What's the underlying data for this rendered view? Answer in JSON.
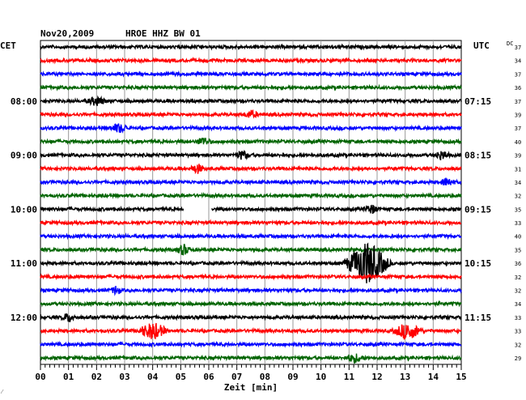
{
  "header": {
    "date": "Nov20,2009",
    "station": "HROE HHZ BW 01",
    "left_zone": "CET",
    "right_zone": "UTC",
    "dc_label": "DC"
  },
  "chart_data": {
    "type": "line",
    "title": "Nov20,2009  HROE HHZ BW 01",
    "xlabel": "Zeit [min]",
    "ylabel": "",
    "xlim": [
      0,
      15
    ],
    "x_ticks": [
      "00",
      "01",
      "02",
      "03",
      "04",
      "05",
      "06",
      "07",
      "08",
      "09",
      "10",
      "11",
      "12",
      "13",
      "14",
      "15"
    ],
    "grid": true,
    "trace_colors": [
      "#000000",
      "#ff0000",
      "#0000ff",
      "#006400"
    ],
    "traces_count": 24,
    "left_hour_labels": [
      {
        "trace": 4,
        "label": "08:00"
      },
      {
        "trace": 8,
        "label": "09:00"
      },
      {
        "trace": 12,
        "label": "10:00"
      },
      {
        "trace": 16,
        "label": "11:00"
      },
      {
        "trace": 20,
        "label": "12:00"
      }
    ],
    "right_hour_labels": [
      {
        "trace": 4,
        "label": "07:15"
      },
      {
        "trace": 8,
        "label": "08:15"
      },
      {
        "trace": 12,
        "label": "09:15"
      },
      {
        "trace": 16,
        "label": "10:15"
      },
      {
        "trace": 20,
        "label": "11:15"
      }
    ],
    "dc_offsets": [
      "37",
      "34",
      "37",
      "36",
      "37",
      "39",
      "37",
      "40",
      "39",
      "31",
      "34",
      "32",
      "35",
      "33",
      "40",
      "35",
      "36",
      "32",
      "32",
      "34",
      "33",
      "33",
      "32",
      "29"
    ],
    "gap": {
      "trace": 12,
      "start_min": 5.1,
      "end_min": 6.1
    },
    "events": [
      {
        "trace": 4,
        "minute": 2.0,
        "amplitude": 0.3,
        "duration": 0.4
      },
      {
        "trace": 5,
        "minute": 7.5,
        "amplitude": 0.25,
        "duration": 0.3
      },
      {
        "trace": 6,
        "minute": 2.8,
        "amplitude": 0.3,
        "duration": 0.4
      },
      {
        "trace": 7,
        "minute": 5.8,
        "amplitude": 0.3,
        "duration": 0.3
      },
      {
        "trace": 8,
        "minute": 7.2,
        "amplitude": 0.3,
        "duration": 0.3
      },
      {
        "trace": 8,
        "minute": 14.3,
        "amplitude": 0.3,
        "duration": 0.3
      },
      {
        "trace": 9,
        "minute": 5.6,
        "amplitude": 0.3,
        "duration": 0.3
      },
      {
        "trace": 10,
        "minute": 14.5,
        "amplitude": 0.3,
        "duration": 0.3
      },
      {
        "trace": 12,
        "minute": 11.8,
        "amplitude": 0.3,
        "duration": 0.3
      },
      {
        "trace": 15,
        "minute": 5.1,
        "amplitude": 0.35,
        "duration": 0.3
      },
      {
        "trace": 16,
        "minute": 11.65,
        "amplitude": 1.6,
        "duration": 0.9
      },
      {
        "trace": 18,
        "minute": 2.7,
        "amplitude": 0.3,
        "duration": 0.2
      },
      {
        "trace": 20,
        "minute": 1.0,
        "amplitude": 0.3,
        "duration": 0.3
      },
      {
        "trace": 21,
        "minute": 4.0,
        "amplitude": 0.6,
        "duration": 0.6
      },
      {
        "trace": 21,
        "minute": 13.1,
        "amplitude": 0.6,
        "duration": 0.6
      },
      {
        "trace": 23,
        "minute": 11.2,
        "amplitude": 0.3,
        "duration": 0.4
      }
    ]
  }
}
